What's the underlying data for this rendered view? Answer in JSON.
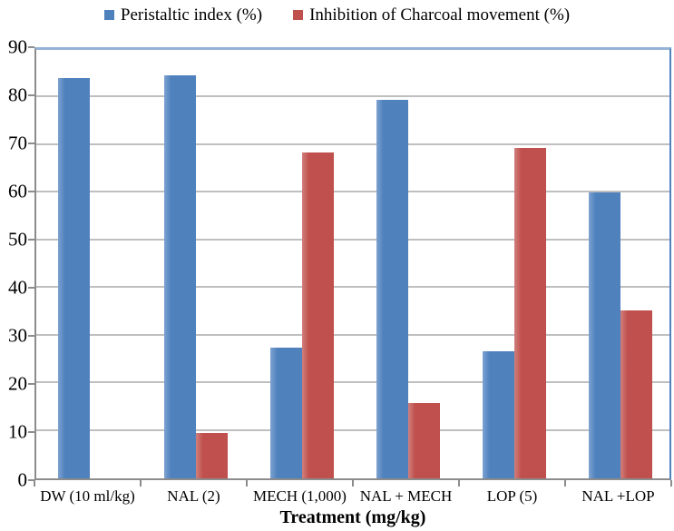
{
  "figure_title": "",
  "legend": {
    "position": "top-center",
    "items": [
      {
        "label": "Peristaltic index (%)",
        "color": "#4f81bd"
      },
      {
        "label": "Inhibition of Charcoal movement (%)",
        "color": "#c0504d"
      }
    ]
  },
  "chart_data": {
    "type": "bar",
    "categories": [
      "DW (10 ml/kg)",
      "NAL (2)",
      "MECH (1,000)",
      "NAL + MECH",
      "LOP (5)",
      "NAL +LOP"
    ],
    "series": [
      {
        "name": "Peristaltic index (%)",
        "color": "#4f81bd",
        "values": [
          84.1,
          84.7,
          27.5,
          79.6,
          26.7,
          60.0
        ]
      },
      {
        "name": "Inhibition of Charcoal movement (%)",
        "color": "#c0504d",
        "values": [
          0,
          9.5,
          68.4,
          15.8,
          69.5,
          35.3
        ]
      }
    ],
    "xlabel": "Treatment (mg/kg)",
    "ylabel": "",
    "ylim": [
      0,
      90
    ],
    "yticks": [
      0,
      10,
      20,
      30,
      40,
      50,
      60,
      70,
      80,
      90
    ],
    "grid": true,
    "legend_position": "top"
  },
  "colors": {
    "series_blue": "#4f81bd",
    "series_red": "#c0504d",
    "gridline": "#bfbfbf",
    "axis": "#8c8c8c",
    "plot_top_border": "#95b3d7",
    "plot_right_border": "#4f81bd",
    "background": "#ffffff"
  }
}
